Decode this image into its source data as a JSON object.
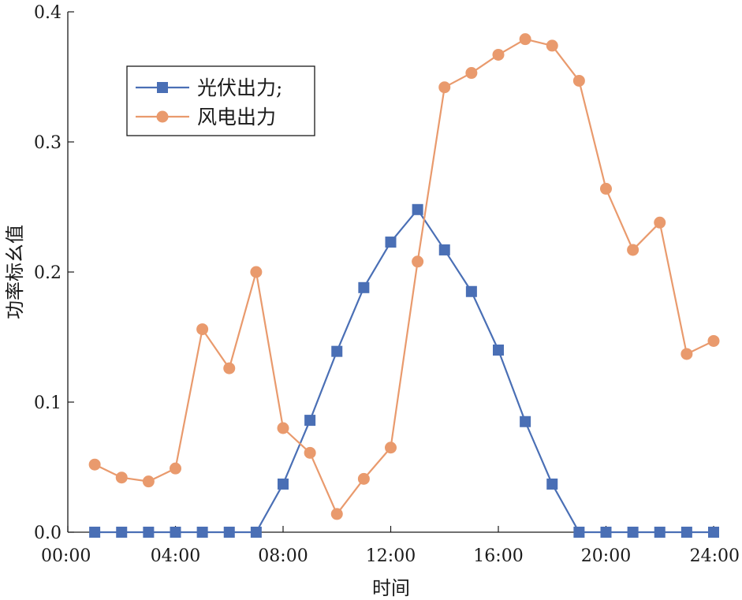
{
  "chart_data": {
    "type": "line",
    "xlabel": "时间",
    "ylabel": "功率标幺值",
    "xlim": [
      0,
      24
    ],
    "ylim": [
      0,
      0.4
    ],
    "x_ticks": [
      "00:00",
      "04:00",
      "08:00",
      "12:00",
      "16:00",
      "20:00",
      "24:00"
    ],
    "y_ticks": [
      "0.0",
      "0.1",
      "0.2",
      "0.3",
      "0.4"
    ],
    "grid": false,
    "legend_position": "top-left",
    "x": [
      1,
      2,
      3,
      4,
      5,
      6,
      7,
      8,
      9,
      10,
      11,
      12,
      13,
      14,
      15,
      16,
      17,
      18,
      19,
      20,
      21,
      22,
      23,
      24
    ],
    "series": [
      {
        "name": "光伏出力;",
        "color": "#4a6fb5",
        "marker": "square",
        "values": [
          0,
          0,
          0,
          0,
          0,
          0,
          0,
          0.037,
          0.086,
          0.139,
          0.188,
          0.223,
          0.248,
          0.217,
          0.185,
          0.14,
          0.085,
          0.037,
          0,
          0,
          0,
          0,
          0,
          0
        ]
      },
      {
        "name": "风电出力",
        "color": "#e99a6d",
        "marker": "circle",
        "values": [
          0.052,
          0.042,
          0.039,
          0.049,
          0.156,
          0.126,
          0.2,
          0.08,
          0.061,
          0.014,
          0.041,
          0.065,
          0.208,
          0.342,
          0.353,
          0.367,
          0.379,
          0.374,
          0.347,
          0.264,
          0.217,
          0.238,
          0.137,
          0.147
        ]
      }
    ]
  }
}
